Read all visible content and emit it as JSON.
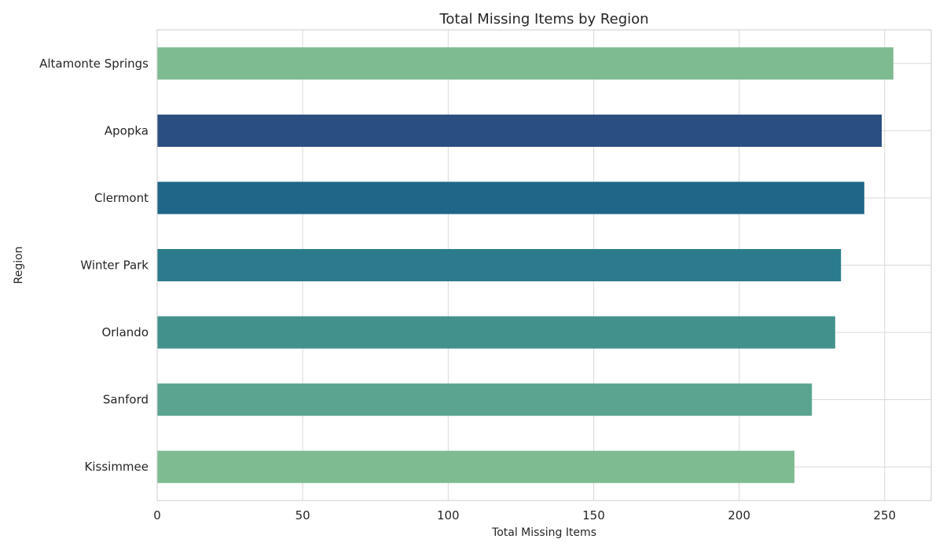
{
  "chart_data": {
    "type": "bar",
    "orientation": "horizontal",
    "title": "Total Missing Items by Region",
    "xlabel": "Total Missing Items",
    "ylabel": "Region",
    "categories": [
      "Altamonte Springs",
      "Apopka",
      "Clermont",
      "Winter Park",
      "Orlando",
      "Sanford",
      "Kissimmee"
    ],
    "values": [
      253,
      249,
      243,
      235,
      233,
      225,
      219
    ],
    "colors": [
      "#7fbb91",
      "#2a4e80",
      "#1f6688",
      "#2b7b8c",
      "#43918d",
      "#5ba490",
      "#7fbb91"
    ],
    "xlim": [
      0,
      266
    ],
    "xticks": [
      0,
      50,
      100,
      150,
      200,
      250
    ],
    "grid": true,
    "legend": "none"
  }
}
